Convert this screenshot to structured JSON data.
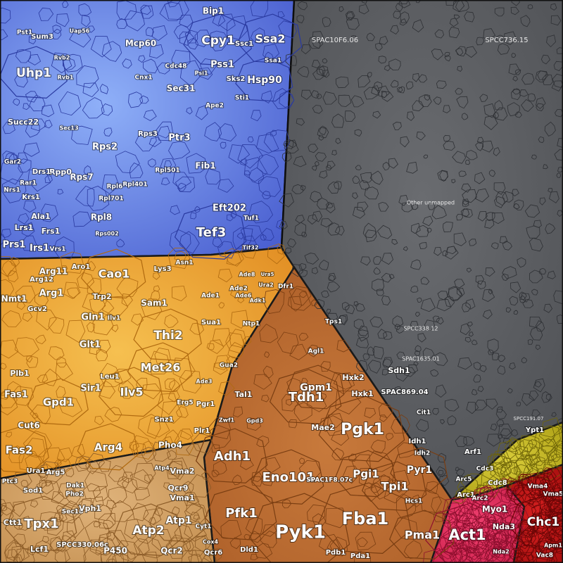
{
  "chart_data": {
    "type": "voronoi-treemap",
    "title": "",
    "groups": [
      {
        "name": "blue",
        "color": "#6a8ef0"
      },
      {
        "name": "grey",
        "color": "#5a5c60"
      },
      {
        "name": "orange",
        "color": "#e9a530"
      },
      {
        "name": "brown",
        "color": "#c07030"
      },
      {
        "name": "tan",
        "color": "#d4a26a"
      },
      {
        "name": "olive",
        "color": "#c8b820"
      },
      {
        "name": "pink",
        "color": "#e8305a"
      },
      {
        "name": "red",
        "color": "#c81a1a"
      }
    ],
    "labels": [
      {
        "text": "Uhp1",
        "group": "blue"
      },
      {
        "text": "Cpy1",
        "group": "blue"
      },
      {
        "text": "Ssa2",
        "group": "blue"
      },
      {
        "text": "Hsp90",
        "group": "blue"
      },
      {
        "text": "Pss1",
        "group": "blue"
      },
      {
        "text": "Sec31",
        "group": "blue"
      },
      {
        "text": "Mcp60",
        "group": "blue"
      },
      {
        "text": "Bip1",
        "group": "blue"
      },
      {
        "text": "Ssc1",
        "group": "blue"
      },
      {
        "text": "Ssa1",
        "group": "blue"
      },
      {
        "text": "Sks2",
        "group": "blue"
      },
      {
        "text": "Sti1",
        "group": "blue"
      },
      {
        "text": "Ape2",
        "group": "blue"
      },
      {
        "text": "Cdc48",
        "group": "blue"
      },
      {
        "text": "Psi1",
        "group": "blue"
      },
      {
        "text": "Cnx1",
        "group": "blue"
      },
      {
        "text": "Sum3",
        "group": "blue"
      },
      {
        "text": "Pst1",
        "group": "blue"
      },
      {
        "text": "Uap56",
        "group": "blue"
      },
      {
        "text": "Rvb2",
        "group": "blue"
      },
      {
        "text": "Rvb1",
        "group": "blue"
      },
      {
        "text": "Succ22",
        "group": "blue"
      },
      {
        "text": "Rps2",
        "group": "blue"
      },
      {
        "text": "Rps3",
        "group": "blue"
      },
      {
        "text": "Rps7",
        "group": "blue"
      },
      {
        "text": "Rpp0",
        "group": "blue"
      },
      {
        "text": "Rpl8",
        "group": "blue"
      },
      {
        "text": "Rpl701",
        "group": "blue"
      },
      {
        "text": "Ptr3",
        "group": "blue"
      },
      {
        "text": "Fib1",
        "group": "blue"
      },
      {
        "text": "Tef3",
        "group": "blue"
      },
      {
        "text": "Eft202",
        "group": "blue"
      },
      {
        "text": "Prs1",
        "group": "blue"
      },
      {
        "text": "Irs1",
        "group": "blue"
      },
      {
        "text": "Lrs1",
        "group": "blue"
      },
      {
        "text": "Frs1",
        "group": "blue"
      },
      {
        "text": "Ala1",
        "group": "blue"
      },
      {
        "text": "Krs1",
        "group": "blue"
      },
      {
        "text": "Drs1",
        "group": "blue"
      },
      {
        "text": "Nrs1",
        "group": "blue"
      },
      {
        "text": "Vrs1",
        "group": "blue"
      },
      {
        "text": "Rar1",
        "group": "blue"
      },
      {
        "text": "Gar2",
        "group": "blue"
      },
      {
        "text": "Sec13",
        "group": "blue"
      },
      {
        "text": "Rpl6",
        "group": "blue"
      },
      {
        "text": "Rpl401",
        "group": "blue"
      },
      {
        "text": "Rpl501",
        "group": "blue"
      },
      {
        "text": "Rps002",
        "group": "blue"
      },
      {
        "text": "Tuf1",
        "group": "blue"
      },
      {
        "text": "Tif32",
        "group": "blue"
      },
      {
        "text": "SPAC10F6.06",
        "group": "grey"
      },
      {
        "text": "SPCC736.15",
        "group": "grey"
      },
      {
        "text": "SPCC338.12",
        "group": "grey"
      },
      {
        "text": "SPAC1635.01",
        "group": "grey"
      },
      {
        "text": "Other unmapped",
        "group": "grey"
      },
      {
        "text": "SPCC191.07",
        "group": "grey"
      },
      {
        "text": "Cao1",
        "group": "orange"
      },
      {
        "text": "Arg11",
        "group": "orange"
      },
      {
        "text": "Arg12",
        "group": "orange"
      },
      {
        "text": "Aro1",
        "group": "orange"
      },
      {
        "text": "Lys3",
        "group": "orange"
      },
      {
        "text": "Asn1",
        "group": "orange"
      },
      {
        "text": "Nmt1",
        "group": "orange"
      },
      {
        "text": "Arg1",
        "group": "orange"
      },
      {
        "text": "Trp2",
        "group": "orange"
      },
      {
        "text": "Sam1",
        "group": "orange"
      },
      {
        "text": "Gcv2",
        "group": "orange"
      },
      {
        "text": "Gln1",
        "group": "orange"
      },
      {
        "text": "Ilv1",
        "group": "orange"
      },
      {
        "text": "Thi2",
        "group": "orange"
      },
      {
        "text": "Glt1",
        "group": "orange"
      },
      {
        "text": "Met26",
        "group": "orange"
      },
      {
        "text": "Leu1",
        "group": "orange"
      },
      {
        "text": "Sir1",
        "group": "orange"
      },
      {
        "text": "Ilv5",
        "group": "orange"
      },
      {
        "text": "Plb1",
        "group": "orange"
      },
      {
        "text": "Fas1",
        "group": "orange"
      },
      {
        "text": "Gpd1",
        "group": "orange"
      },
      {
        "text": "Cut6",
        "group": "orange"
      },
      {
        "text": "Fas2",
        "group": "orange"
      },
      {
        "text": "Arg4",
        "group": "orange"
      },
      {
        "text": "Ura1",
        "group": "orange"
      },
      {
        "text": "Arg5",
        "group": "orange"
      },
      {
        "text": "Pho4",
        "group": "orange"
      },
      {
        "text": "Snz1",
        "group": "orange"
      },
      {
        "text": "Pgr1",
        "group": "orange"
      },
      {
        "text": "Erg5",
        "group": "orange"
      },
      {
        "text": "Plr1",
        "group": "orange"
      },
      {
        "text": "Ade3",
        "group": "orange"
      },
      {
        "text": "Gua2",
        "group": "orange"
      },
      {
        "text": "Sua1",
        "group": "orange"
      },
      {
        "text": "Ade1",
        "group": "orange"
      },
      {
        "text": "Ade2",
        "group": "orange"
      },
      {
        "text": "Ade6",
        "group": "orange"
      },
      {
        "text": "Ade8",
        "group": "orange"
      },
      {
        "text": "Adk1",
        "group": "orange"
      },
      {
        "text": "Ura2",
        "group": "orange"
      },
      {
        "text": "Ura5",
        "group": "orange"
      },
      {
        "text": "Dfr1",
        "group": "brown"
      },
      {
        "text": "Ntp1",
        "group": "brown"
      },
      {
        "text": "Tps1",
        "group": "brown"
      },
      {
        "text": "Agl1",
        "group": "brown"
      },
      {
        "text": "Tal1",
        "group": "brown"
      },
      {
        "text": "Zwf1",
        "group": "brown"
      },
      {
        "text": "Gpd3",
        "group": "brown"
      },
      {
        "text": "Gpm1",
        "group": "brown"
      },
      {
        "text": "Hxk2",
        "group": "brown"
      },
      {
        "text": "Hxk1",
        "group": "brown"
      },
      {
        "text": "Sdh1",
        "group": "brown"
      },
      {
        "text": "Tdh1",
        "group": "brown"
      },
      {
        "text": "Pgk1",
        "group": "brown"
      },
      {
        "text": "Mae2",
        "group": "brown"
      },
      {
        "text": "Adh1",
        "group": "brown"
      },
      {
        "text": "Eno101",
        "group": "brown"
      },
      {
        "text": "SPAC1F8.07c",
        "group": "brown"
      },
      {
        "text": "Pgi1",
        "group": "brown"
      },
      {
        "text": "Tpi1",
        "group": "brown"
      },
      {
        "text": "Pyr1",
        "group": "brown"
      },
      {
        "text": "Idh1",
        "group": "brown"
      },
      {
        "text": "Idh2",
        "group": "brown"
      },
      {
        "text": "Cit1",
        "group": "brown"
      },
      {
        "text": "SPAC869.04",
        "group": "brown"
      },
      {
        "text": "Pfk1",
        "group": "brown"
      },
      {
        "text": "Pyk1",
        "group": "brown"
      },
      {
        "text": "Fba1",
        "group": "brown"
      },
      {
        "text": "Dld1",
        "group": "brown"
      },
      {
        "text": "Pdb1",
        "group": "brown"
      },
      {
        "text": "Pda1",
        "group": "brown"
      },
      {
        "text": "Pma1",
        "group": "brown"
      },
      {
        "text": "Hcs1",
        "group": "brown"
      },
      {
        "text": "Tpx1",
        "group": "tan"
      },
      {
        "text": "Sod1",
        "group": "tan"
      },
      {
        "text": "Ctt1",
        "group": "tan"
      },
      {
        "text": "Ptc3",
        "group": "tan"
      },
      {
        "text": "Lcf1",
        "group": "tan"
      },
      {
        "text": "SPCC330.06c",
        "group": "tan"
      },
      {
        "text": "Sec18",
        "group": "tan"
      },
      {
        "text": "Pho2",
        "group": "tan"
      },
      {
        "text": "Dak1",
        "group": "tan"
      },
      {
        "text": "Vph1",
        "group": "tan"
      },
      {
        "text": "P450",
        "group": "tan"
      },
      {
        "text": "Atp2",
        "group": "tan"
      },
      {
        "text": "Atp1",
        "group": "tan"
      },
      {
        "text": "Qcr2",
        "group": "tan"
      },
      {
        "text": "Qcr6",
        "group": "tan"
      },
      {
        "text": "Qcr9",
        "group": "tan"
      },
      {
        "text": "Vma1",
        "group": "tan"
      },
      {
        "text": "Vma2",
        "group": "tan"
      },
      {
        "text": "Cyt1",
        "group": "tan"
      },
      {
        "text": "Atp4",
        "group": "tan"
      },
      {
        "text": "Cox4",
        "group": "tan"
      },
      {
        "text": "Ypt1",
        "group": "olive"
      },
      {
        "text": "Arf1",
        "group": "olive"
      },
      {
        "text": "Act1",
        "group": "pink"
      },
      {
        "text": "Myo1",
        "group": "pink"
      },
      {
        "text": "Nda3",
        "group": "pink"
      },
      {
        "text": "Nda2",
        "group": "pink"
      },
      {
        "text": "Arc1",
        "group": "pink"
      },
      {
        "text": "Arc2",
        "group": "pink"
      },
      {
        "text": "Arc5",
        "group": "pink"
      },
      {
        "text": "Cdc8",
        "group": "pink"
      },
      {
        "text": "Cdc3",
        "group": "pink"
      },
      {
        "text": "Chc1",
        "group": "red"
      },
      {
        "text": "Vma4",
        "group": "red"
      },
      {
        "text": "Vma5",
        "group": "red"
      },
      {
        "text": "Vac8",
        "group": "red"
      },
      {
        "text": "Apm1",
        "group": "red"
      }
    ]
  }
}
